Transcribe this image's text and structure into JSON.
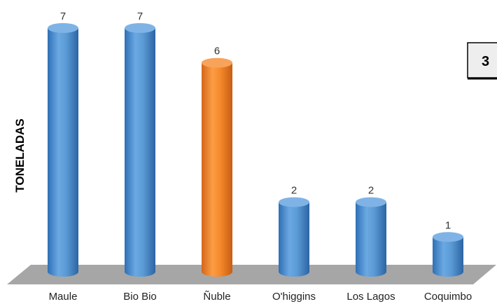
{
  "chart_data": {
    "type": "bar",
    "categories": [
      "Maule",
      "Bio Bio",
      "Ñuble",
      "O'higgins",
      "Los Lagos",
      "Coquimbo"
    ],
    "values": [
      7,
      7,
      6,
      2,
      2,
      1
    ],
    "data_labels": [
      "7",
      "7",
      "6",
      "2",
      "2",
      "1"
    ],
    "ylabel": "TONELADAS",
    "ylim": [
      0,
      7
    ],
    "grid": false,
    "bar_style": "3d-cylinder",
    "colors": {
      "default": "#5b9bd5",
      "highlight": "#f58a2b",
      "floor": "#a6a6a6"
    },
    "highlight_index": 2
  },
  "badge": {
    "text": "3"
  }
}
